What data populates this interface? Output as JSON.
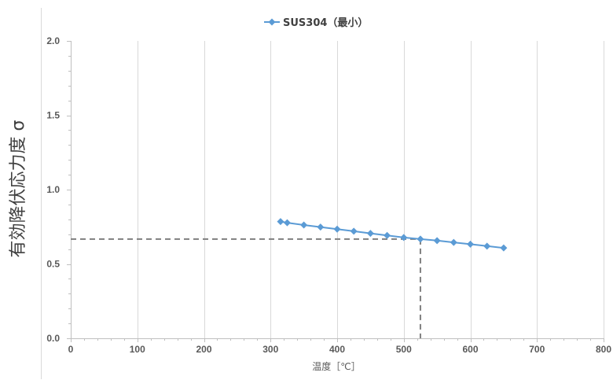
{
  "chart_data": {
    "type": "line",
    "xlabel": "温度［℃］",
    "ylabel": "有効降伏応力度 σ",
    "xlim": [
      0,
      800
    ],
    "ylim": [
      0,
      2.0
    ],
    "x_ticks": [
      0,
      100,
      200,
      300,
      400,
      500,
      600,
      700,
      800
    ],
    "x_tick_labels": [
      "0",
      "100",
      "200",
      "300",
      "400",
      "500",
      "600",
      "700",
      "800"
    ],
    "y_ticks": [
      0,
      0.5,
      1.0,
      1.5,
      2.0
    ],
    "y_tick_labels": [
      "0.0",
      "0.5",
      "1.0",
      "1.5",
      "2.0"
    ],
    "grid": "vertical-major",
    "legend_position": "top-center",
    "series": [
      {
        "name": "SUS304（最小）",
        "color": "#5B9BD5",
        "marker": "diamond",
        "x": [
          315,
          325,
          350,
          375,
          400,
          425,
          450,
          475,
          500,
          525,
          550,
          575,
          600,
          625,
          650
        ],
        "y": [
          0.785,
          0.777,
          0.762,
          0.748,
          0.734,
          0.72,
          0.706,
          0.692,
          0.678,
          0.667,
          0.657,
          0.645,
          0.633,
          0.62,
          0.608
        ]
      }
    ],
    "reference_lines": {
      "color": "#7F7F7F",
      "style": "dashed",
      "x": 525,
      "y": 0.667
    }
  }
}
